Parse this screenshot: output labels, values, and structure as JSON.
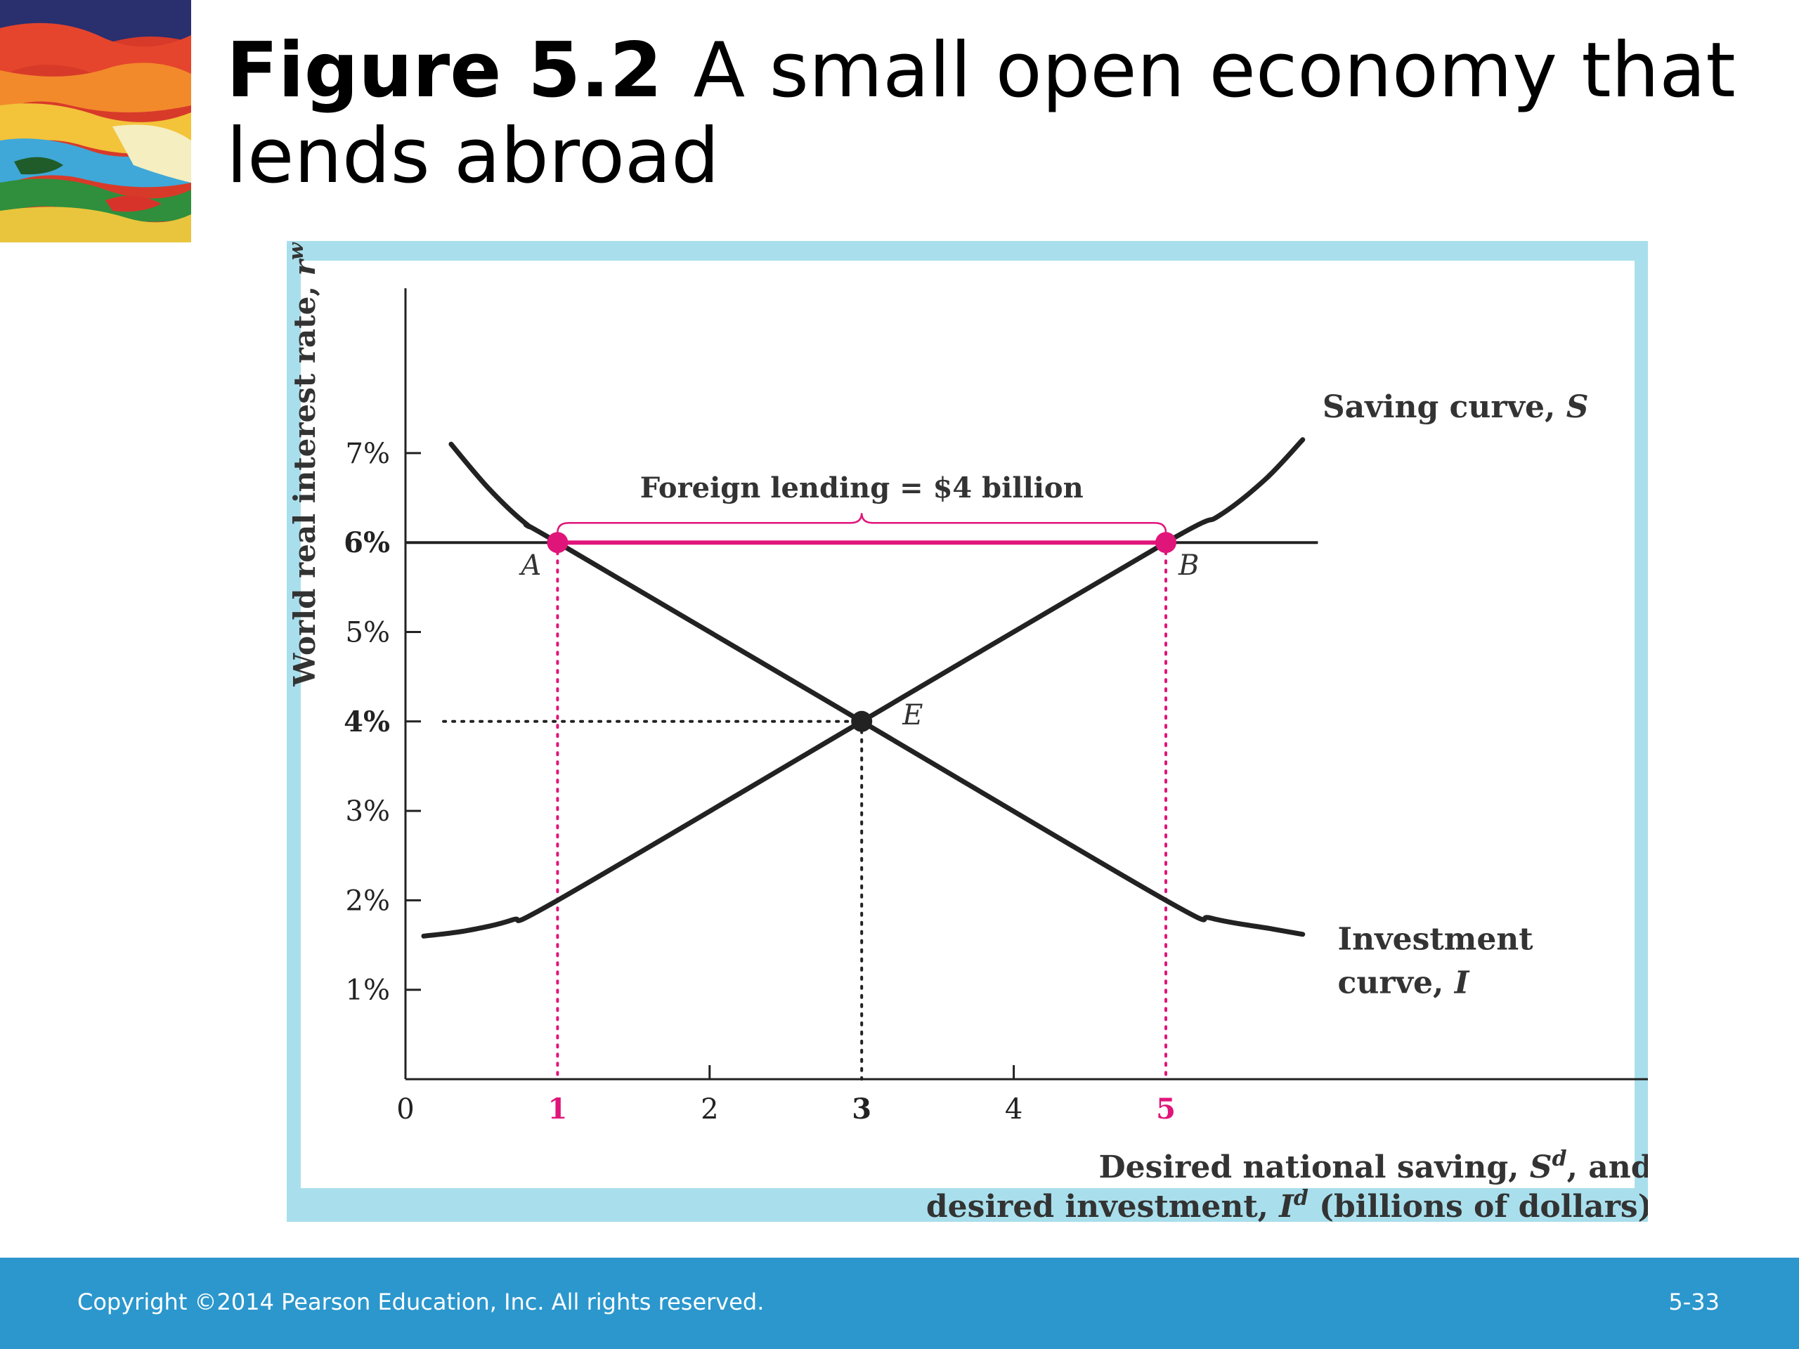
{
  "header": {
    "figure_number": "Figure 5.2",
    "title": "A small open economy that lends abroad"
  },
  "footer": {
    "copyright": "Copyright ©2014 Pearson Education, Inc. All rights reserved.",
    "slide_number": "5-33"
  },
  "colors": {
    "panel": "#a9dfec",
    "highlight": "#e0157a",
    "curve": "#222222",
    "footer": "#2b97cd"
  },
  "chart_data": {
    "type": "line",
    "ylabel": "World real interest rate, r",
    "ylabel_sup": "w",
    "xlabel_line1_prefix": "Desired national saving, S",
    "xlabel_line1_sup": "d",
    "xlabel_line1_suffix": ", and",
    "xlabel_line2_prefix": "desired investment, I",
    "xlabel_line2_sup": "d",
    "xlabel_line2_suffix": " (billions of dollars)",
    "xlim": [
      0,
      8.2
    ],
    "ylim": [
      0,
      9.0
    ],
    "x_ticks": [
      {
        "value": 0,
        "label": "0",
        "tick": false,
        "style": "normal"
      },
      {
        "value": 1,
        "label": "1",
        "tick": false,
        "style": "highlight"
      },
      {
        "value": 2,
        "label": "2",
        "tick": true,
        "style": "normal"
      },
      {
        "value": 3,
        "label": "3",
        "tick": false,
        "style": "bold"
      },
      {
        "value": 4,
        "label": "4",
        "tick": true,
        "style": "normal"
      },
      {
        "value": 5,
        "label": "5",
        "tick": false,
        "style": "highlight"
      }
    ],
    "y_ticks": [
      {
        "value": 1,
        "label": "1%",
        "bold": false
      },
      {
        "value": 2,
        "label": "2%",
        "bold": false
      },
      {
        "value": 3,
        "label": "3%",
        "bold": false
      },
      {
        "value": 4,
        "label": "4%",
        "bold": true
      },
      {
        "value": 5,
        "label": "5%",
        "bold": false
      },
      {
        "value": 6,
        "label": "6%",
        "bold": true
      },
      {
        "value": 7,
        "label": "7%",
        "bold": false
      }
    ],
    "series": [
      {
        "name": "Saving curve, S",
        "label_prefix": "Saving curve, ",
        "label_italic": "S",
        "points": [
          [
            0.12,
            1.6
          ],
          [
            0.4,
            1.66
          ],
          [
            0.7,
            1.78
          ],
          [
            1,
            2
          ],
          [
            3,
            4
          ],
          [
            5,
            6
          ],
          [
            5.35,
            6.3
          ],
          [
            5.65,
            6.7
          ],
          [
            5.9,
            7.15
          ]
        ]
      },
      {
        "name": "Investment curve, I",
        "label_line1": "Investment",
        "label_line2_prefix": "curve, ",
        "label_italic": "I",
        "points": [
          [
            0.3,
            7.1
          ],
          [
            0.55,
            6.6
          ],
          [
            0.8,
            6.2
          ],
          [
            1,
            6
          ],
          [
            3,
            4
          ],
          [
            5,
            2
          ],
          [
            5.3,
            1.8
          ],
          [
            5.7,
            1.68
          ],
          [
            5.9,
            1.62
          ]
        ]
      }
    ],
    "world_rate": {
      "y": 6,
      "x_end": 6.0
    },
    "foreign_lending": {
      "x_start": 1,
      "x_end": 5,
      "y": 6,
      "label": "Foreign lending = $4 billion"
    },
    "points": [
      {
        "label": "A",
        "x": 1,
        "y": 6,
        "style": "highlight"
      },
      {
        "label": "B",
        "x": 5,
        "y": 6,
        "style": "highlight"
      },
      {
        "label": "E",
        "x": 3,
        "y": 4,
        "style": "dark"
      }
    ],
    "guides": [
      {
        "x": 1,
        "y": 6,
        "style": "highlight"
      },
      {
        "x": 5,
        "y": 6,
        "style": "highlight"
      },
      {
        "x": 3,
        "y": 4,
        "style": "dark"
      }
    ]
  }
}
